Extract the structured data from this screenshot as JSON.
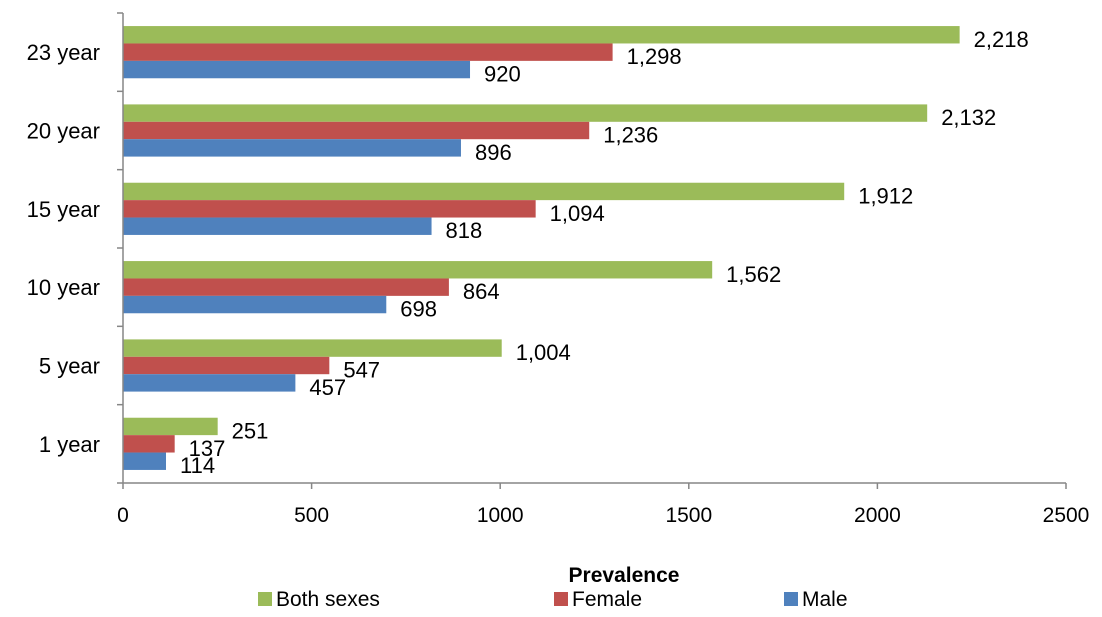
{
  "chart_data": {
    "type": "bar",
    "orientation": "horizontal",
    "title": "",
    "xlabel": "Prevalence",
    "ylabel": "",
    "xlim": [
      0,
      2500
    ],
    "x_ticks": [
      "0",
      "500",
      "1000",
      "1500",
      "2000",
      "2500"
    ],
    "categories": [
      "1 year",
      "5 year",
      "10 year",
      "15 year",
      "20 year",
      "23 year"
    ],
    "series": [
      {
        "name": "Both sexes",
        "color": "#9BBB59",
        "values": [
          251,
          1004,
          1562,
          1912,
          2132,
          2218
        ],
        "labels": [
          "251",
          "1,004",
          "1,562",
          "1,912",
          "2,132",
          "2,218"
        ]
      },
      {
        "name": "Female",
        "color": "#C0504D",
        "values": [
          137,
          547,
          864,
          1094,
          1236,
          1298
        ],
        "labels": [
          "137",
          "547",
          "864",
          "1,094",
          "1,236",
          "1,298"
        ]
      },
      {
        "name": "Male",
        "color": "#4F81BD",
        "values": [
          114,
          457,
          698,
          818,
          896,
          920
        ],
        "labels": [
          "114",
          "457",
          "698",
          "818",
          "896",
          "920"
        ]
      }
    ],
    "grid": false,
    "legend_position": "bottom",
    "axis_color": "#868686"
  }
}
